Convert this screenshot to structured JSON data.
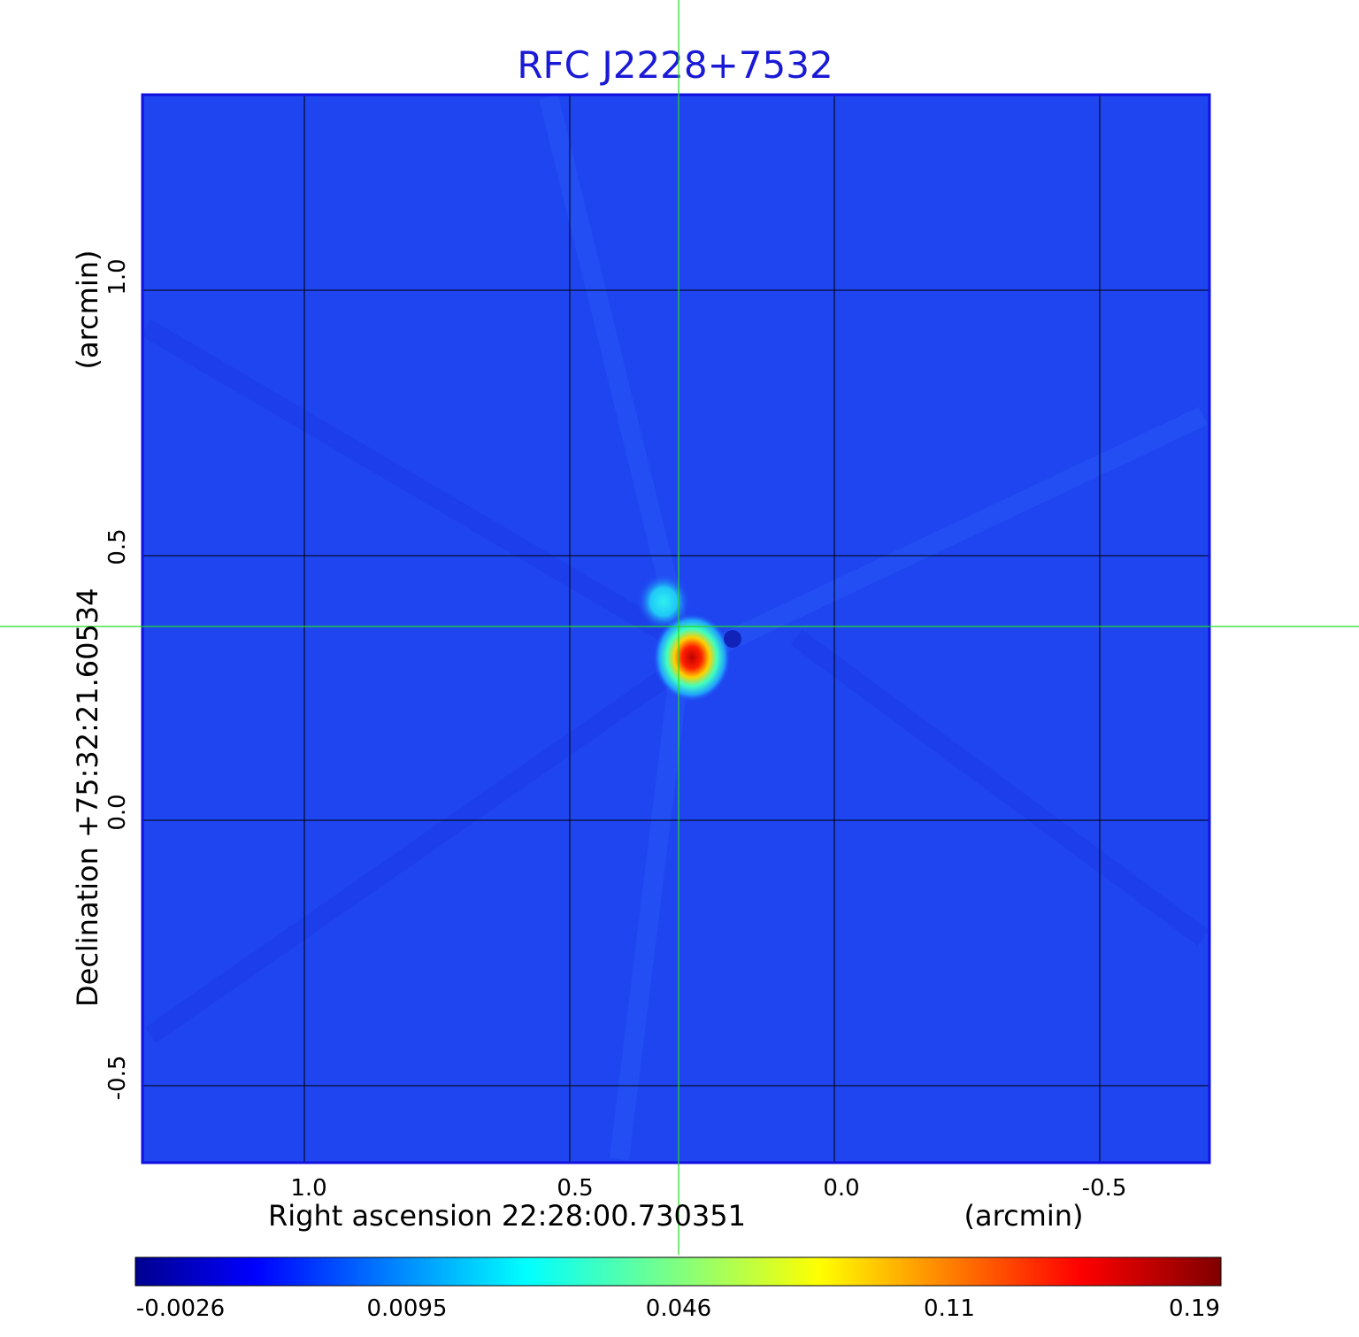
{
  "title": "RFC J2228+7532",
  "x_axis": {
    "label": "Right ascension  22:28:00.730351",
    "unit": "(arcmin)",
    "ticks": [
      "1.0",
      "0.5",
      "0.0",
      "-0.5"
    ]
  },
  "y_axis": {
    "label": "Declination  +75:32:21.60534",
    "unit": "(arcmin)",
    "ticks": [
      "1.0",
      "0.5",
      "0.0",
      "-0.5"
    ]
  },
  "colorbar": {
    "ticks": [
      "-0.0026",
      "0.0095",
      "0.046",
      "0.11",
      "0.19"
    ]
  },
  "colors": {
    "title": "#1a1ad6",
    "background_field": "#1f45f0",
    "grid": "#000000",
    "crosshair": "#22dd22",
    "frame": "#1010e0"
  }
}
